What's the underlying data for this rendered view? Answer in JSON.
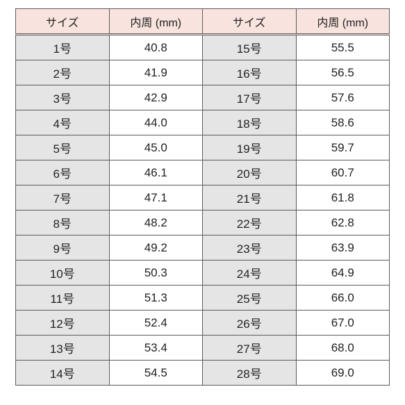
{
  "table": {
    "headers": [
      "サイズ",
      "内周 (mm)",
      "サイズ",
      "内周 (mm)"
    ],
    "rows": [
      [
        "1号",
        "40.8",
        "15号",
        "55.5"
      ],
      [
        "2号",
        "41.9",
        "16号",
        "56.5"
      ],
      [
        "3号",
        "42.9",
        "17号",
        "57.6"
      ],
      [
        "4号",
        "44.0",
        "18号",
        "58.6"
      ],
      [
        "5号",
        "45.0",
        "19号",
        "59.7"
      ],
      [
        "6号",
        "46.1",
        "20号",
        "60.7"
      ],
      [
        "7号",
        "47.1",
        "21号",
        "61.8"
      ],
      [
        "8号",
        "48.2",
        "22号",
        "62.8"
      ],
      [
        "9号",
        "49.2",
        "23号",
        "63.9"
      ],
      [
        "10号",
        "50.3",
        "24号",
        "64.9"
      ],
      [
        "11号",
        "51.3",
        "25号",
        "66.0"
      ],
      [
        "12号",
        "52.4",
        "26号",
        "67.0"
      ],
      [
        "13号",
        "53.4",
        "27号",
        "68.0"
      ],
      [
        "14号",
        "54.5",
        "28号",
        "69.0"
      ]
    ],
    "styles": {
      "header_bg": "#f8e3de",
      "size_col_bg": "#e5e5e5",
      "value_col_bg": "#ffffff",
      "border_color": "#5b5b5b",
      "font_size_header": 16,
      "font_size_cell": 17,
      "text_color": "#222222"
    }
  }
}
